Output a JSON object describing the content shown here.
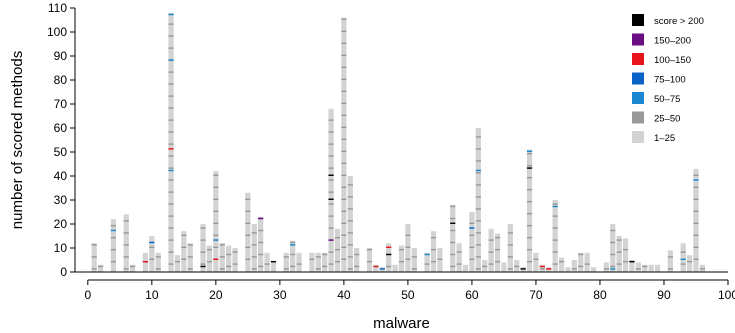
{
  "chart_data": {
    "type": "bar",
    "stacked": true,
    "xlabel": "malware",
    "ylabel": "number of scored methods",
    "xlim": [
      -2,
      100
    ],
    "ylim": [
      0,
      110
    ],
    "xticks": [
      0,
      10,
      20,
      30,
      40,
      50,
      60,
      70,
      80,
      90,
      100
    ],
    "yticks": [
      0,
      10,
      20,
      30,
      40,
      50,
      60,
      70,
      80,
      90,
      100,
      110
    ],
    "legend": {
      "position": "top-right",
      "entries": [
        {
          "label": "score > 200",
          "color": "#000000"
        },
        {
          "label": "150–200",
          "color": "#6a0d83"
        },
        {
          "label": "100–150",
          "color": "#e8141c"
        },
        {
          "label": "75–100",
          "color": "#0a64c8"
        },
        {
          "label": "50–75",
          "color": "#1a87cf"
        },
        {
          "label": "25–50",
          "color": "#999999"
        },
        {
          "label": "1–25",
          "color": "#d3d3d3"
        }
      ]
    },
    "bars": [
      {
        "x": 1,
        "height": 12,
        "marks": []
      },
      {
        "x": 2,
        "height": 3,
        "marks": []
      },
      {
        "x": 4,
        "height": 22,
        "marks": [
          {
            "y": 17,
            "color": "#1a87cf"
          }
        ]
      },
      {
        "x": 6,
        "height": 24,
        "marks": []
      },
      {
        "x": 7,
        "height": 3,
        "marks": []
      },
      {
        "x": 9,
        "height": 8,
        "marks": [
          {
            "y": 4,
            "color": "#e8141c"
          }
        ]
      },
      {
        "x": 10,
        "height": 15,
        "marks": [
          {
            "y": 12,
            "color": "#0a64c8"
          }
        ]
      },
      {
        "x": 11,
        "height": 8,
        "marks": []
      },
      {
        "x": 13,
        "height": 108,
        "marks": [
          {
            "y": 51,
            "color": "#e8141c"
          },
          {
            "y": 42,
            "color": "#1a87cf"
          },
          {
            "y": 88,
            "color": "#1a87cf"
          },
          {
            "y": 107,
            "color": "#1a87cf"
          }
        ]
      },
      {
        "x": 14,
        "height": 7,
        "marks": []
      },
      {
        "x": 15,
        "height": 17,
        "marks": []
      },
      {
        "x": 16,
        "height": 12,
        "marks": []
      },
      {
        "x": 18,
        "height": 20,
        "marks": [
          {
            "y": 2,
            "color": "#000000"
          }
        ]
      },
      {
        "x": 19,
        "height": 11,
        "marks": []
      },
      {
        "x": 20,
        "height": 42,
        "marks": [
          {
            "y": 5,
            "color": "#e8141c"
          },
          {
            "y": 13,
            "color": "#1a87cf"
          }
        ]
      },
      {
        "x": 21,
        "height": 12,
        "marks": []
      },
      {
        "x": 22,
        "height": 11,
        "marks": []
      },
      {
        "x": 23,
        "height": 10,
        "marks": []
      },
      {
        "x": 25,
        "height": 33,
        "marks": []
      },
      {
        "x": 26,
        "height": 20,
        "marks": []
      },
      {
        "x": 27,
        "height": 23,
        "marks": [
          {
            "y": 22,
            "color": "#6a0d83"
          }
        ]
      },
      {
        "x": 28,
        "height": 8,
        "marks": []
      },
      {
        "x": 29,
        "height": 4,
        "marks": [
          {
            "y": 4,
            "color": "#000000"
          }
        ]
      },
      {
        "x": 31,
        "height": 8,
        "marks": []
      },
      {
        "x": 32,
        "height": 13,
        "marks": [
          {
            "y": 11,
            "color": "#1a87cf"
          }
        ]
      },
      {
        "x": 33,
        "height": 8,
        "marks": []
      },
      {
        "x": 35,
        "height": 8,
        "marks": []
      },
      {
        "x": 36,
        "height": 8,
        "marks": []
      },
      {
        "x": 37,
        "height": 8,
        "marks": []
      },
      {
        "x": 38,
        "height": 68,
        "marks": [
          {
            "y": 40,
            "color": "#000000"
          },
          {
            "y": 30,
            "color": "#000000"
          },
          {
            "y": 13,
            "color": "#6a0d83"
          }
        ]
      },
      {
        "x": 39,
        "height": 18,
        "marks": []
      },
      {
        "x": 40,
        "height": 106,
        "marks": []
      },
      {
        "x": 41,
        "height": 40,
        "marks": []
      },
      {
        "x": 42,
        "height": 10,
        "marks": []
      },
      {
        "x": 44,
        "height": 10,
        "marks": []
      },
      {
        "x": 45,
        "height": 3,
        "marks": [
          {
            "y": 2,
            "color": "#e8141c"
          }
        ]
      },
      {
        "x": 46,
        "height": 2,
        "marks": [
          {
            "y": 1,
            "color": "#0a64c8"
          }
        ]
      },
      {
        "x": 47,
        "height": 12,
        "marks": [
          {
            "y": 10,
            "color": "#e8141c"
          },
          {
            "y": 7,
            "color": "#000000"
          }
        ]
      },
      {
        "x": 48,
        "height": 3,
        "marks": []
      },
      {
        "x": 49,
        "height": 11,
        "marks": []
      },
      {
        "x": 50,
        "height": 20,
        "marks": []
      },
      {
        "x": 51,
        "height": 10,
        "marks": []
      },
      {
        "x": 53,
        "height": 8,
        "marks": [
          {
            "y": 7,
            "color": "#1a87cf"
          }
        ]
      },
      {
        "x": 54,
        "height": 17,
        "marks": []
      },
      {
        "x": 55,
        "height": 10,
        "marks": []
      },
      {
        "x": 57,
        "height": 28,
        "marks": [
          {
            "y": 20,
            "color": "#000000"
          }
        ]
      },
      {
        "x": 58,
        "height": 12,
        "marks": []
      },
      {
        "x": 59,
        "height": 3,
        "marks": []
      },
      {
        "x": 60,
        "height": 25,
        "marks": [
          {
            "y": 18,
            "color": "#0a64c8"
          }
        ]
      },
      {
        "x": 61,
        "height": 60,
        "marks": [
          {
            "y": 42,
            "color": "#1a87cf"
          }
        ]
      },
      {
        "x": 62,
        "height": 5,
        "marks": []
      },
      {
        "x": 63,
        "height": 18,
        "marks": []
      },
      {
        "x": 64,
        "height": 16,
        "marks": []
      },
      {
        "x": 65,
        "height": 4,
        "marks": []
      },
      {
        "x": 66,
        "height": 20,
        "marks": []
      },
      {
        "x": 67,
        "height": 5,
        "marks": []
      },
      {
        "x": 68,
        "height": 2,
        "marks": [
          {
            "y": 1,
            "color": "#000000"
          }
        ]
      },
      {
        "x": 69,
        "height": 51,
        "marks": [
          {
            "y": 43,
            "color": "#000000"
          },
          {
            "y": 50,
            "color": "#1a87cf"
          }
        ]
      },
      {
        "x": 70,
        "height": 8,
        "marks": []
      },
      {
        "x": 71,
        "height": 3,
        "marks": [
          {
            "y": 2,
            "color": "#e8141c"
          }
        ]
      },
      {
        "x": 72,
        "height": 2,
        "marks": [
          {
            "y": 1,
            "color": "#e8141c"
          }
        ]
      },
      {
        "x": 73,
        "height": 30,
        "marks": [
          {
            "y": 27,
            "color": "#1a87cf"
          }
        ]
      },
      {
        "x": 74,
        "height": 6,
        "marks": []
      },
      {
        "x": 75,
        "height": 2,
        "marks": []
      },
      {
        "x": 76,
        "height": 5,
        "marks": []
      },
      {
        "x": 77,
        "height": 8,
        "marks": []
      },
      {
        "x": 78,
        "height": 8,
        "marks": []
      },
      {
        "x": 79,
        "height": 2,
        "marks": []
      },
      {
        "x": 81,
        "height": 4,
        "marks": []
      },
      {
        "x": 82,
        "height": 20,
        "marks": [
          {
            "y": 1,
            "color": "#1a87cf"
          }
        ]
      },
      {
        "x": 83,
        "height": 15,
        "marks": []
      },
      {
        "x": 84,
        "height": 14,
        "marks": []
      },
      {
        "x": 85,
        "height": 5,
        "marks": [
          {
            "y": 4,
            "color": "#000000"
          }
        ]
      },
      {
        "x": 86,
        "height": 4,
        "marks": []
      },
      {
        "x": 87,
        "height": 3,
        "marks": []
      },
      {
        "x": 88,
        "height": 3,
        "marks": []
      },
      {
        "x": 89,
        "height": 3,
        "marks": []
      },
      {
        "x": 91,
        "height": 9,
        "marks": []
      },
      {
        "x": 93,
        "height": 12,
        "marks": [
          {
            "y": 5,
            "color": "#1a87cf"
          }
        ]
      },
      {
        "x": 94,
        "height": 7,
        "marks": []
      },
      {
        "x": 95,
        "height": 43,
        "marks": [
          {
            "y": 38,
            "color": "#1a87cf"
          }
        ]
      },
      {
        "x": 96,
        "height": 3,
        "marks": []
      }
    ]
  }
}
